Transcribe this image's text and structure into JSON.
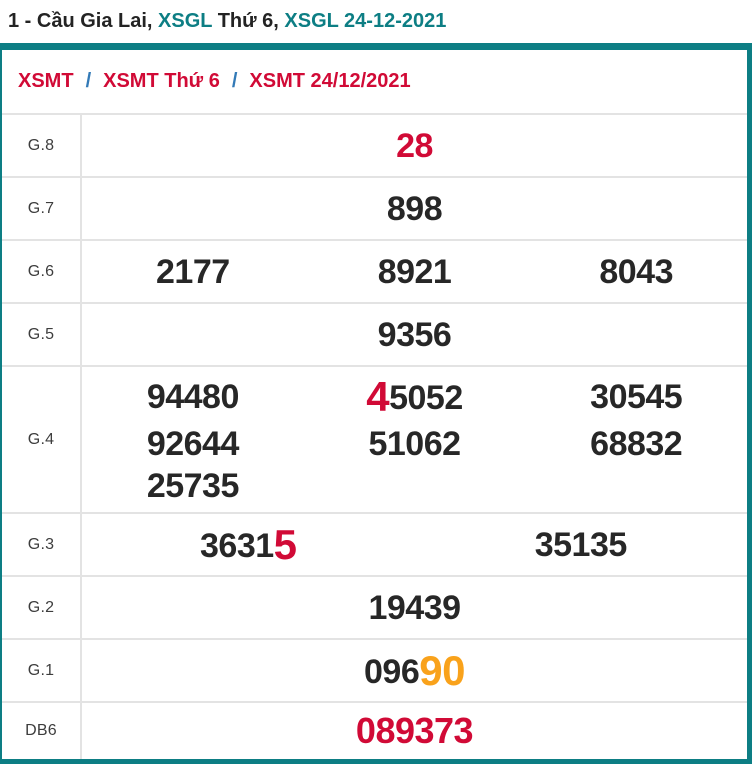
{
  "page_title": {
    "full_text": "1 - Cầu Gia Lai, XSGL Thứ 6, XSGL 24-12-2021",
    "segments": [
      {
        "text": "1 - Cầu Gia Lai, ",
        "style": "dark"
      },
      {
        "text": "XSGL",
        "style": "teal"
      },
      {
        "text": " Thứ 6, ",
        "style": "dark"
      },
      {
        "text": "XSGL 24-12-2021",
        "style": "teal"
      }
    ]
  },
  "breadcrumb": {
    "separator": "/",
    "items": [
      {
        "label": "XSMT"
      },
      {
        "label": "XSMT Thứ 6"
      },
      {
        "label": "XSMT 24/12/2021"
      }
    ]
  },
  "prize_table": {
    "rows": [
      {
        "label": "G.8",
        "lines": [
          [
            [
              {
                "t": "28",
                "c": "red"
              }
            ]
          ]
        ]
      },
      {
        "label": "G.7",
        "lines": [
          [
            [
              {
                "t": "898",
                "c": "black"
              }
            ]
          ]
        ]
      },
      {
        "label": "G.6",
        "lines": [
          [
            [
              {
                "t": "2177",
                "c": "black"
              }
            ],
            [
              {
                "t": "8921",
                "c": "black"
              }
            ],
            [
              {
                "t": "8043",
                "c": "black"
              }
            ]
          ]
        ]
      },
      {
        "label": "G.5",
        "lines": [
          [
            [
              {
                "t": "9356",
                "c": "black"
              }
            ]
          ]
        ]
      },
      {
        "label": "G.4",
        "lines": [
          [
            [
              {
                "t": "94480",
                "c": "black"
              }
            ],
            [
              {
                "t": "4",
                "c": "red",
                "big": true
              },
              {
                "t": "5052",
                "c": "black"
              }
            ],
            [
              {
                "t": "30545",
                "c": "black"
              }
            ]
          ],
          [
            [
              {
                "t": "92644",
                "c": "black"
              }
            ],
            [
              {
                "t": "51062",
                "c": "black"
              }
            ],
            [
              {
                "t": "68832",
                "c": "black"
              }
            ]
          ],
          [
            [
              {
                "t": "25735",
                "c": "black"
              }
            ],
            [],
            []
          ]
        ]
      },
      {
        "label": "G.3",
        "lines": [
          [
            [
              {
                "t": "3631",
                "c": "black"
              },
              {
                "t": "5",
                "c": "red",
                "big": true
              }
            ],
            [
              {
                "t": "35135",
                "c": "black"
              }
            ]
          ]
        ]
      },
      {
        "label": "G.2",
        "lines": [
          [
            [
              {
                "t": "19439",
                "c": "black"
              }
            ]
          ]
        ]
      },
      {
        "label": "G.1",
        "lines": [
          [
            [
              {
                "t": "096",
                "c": "black"
              },
              {
                "t": "90",
                "c": "orange",
                "big": true
              }
            ]
          ]
        ]
      },
      {
        "label": "DB6",
        "emphasis": true,
        "lines": [
          [
            [
              {
                "t": "089373",
                "c": "red"
              }
            ]
          ]
        ]
      }
    ]
  },
  "colors": {
    "teal": "#0d7e84",
    "crimson": "#d10a36",
    "orange": "#f9a21b",
    "text_dark": "#272727",
    "breadcrumb_slash": "#337ab7",
    "divider_gray": "#e3e3e3"
  }
}
